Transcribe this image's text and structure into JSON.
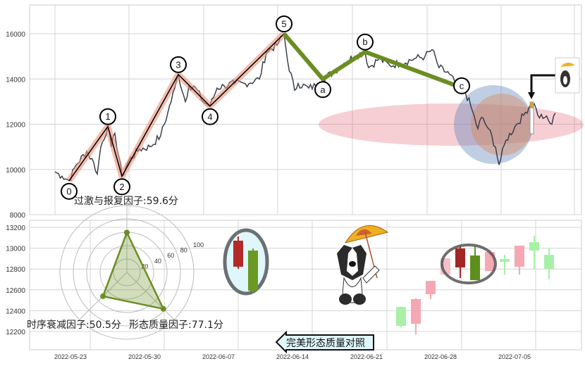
{
  "chart_data": [
    {
      "type": "line",
      "panel": "top",
      "yticks": [
        8000,
        10000,
        12000,
        14000,
        16000
      ],
      "ylim": [
        8000,
        17200
      ],
      "xlabel": "",
      "ylabel": "",
      "grid": true,
      "price_series": [
        [
          0,
          9900
        ],
        [
          2,
          9700
        ],
        [
          4,
          9500
        ],
        [
          6,
          10200
        ],
        [
          9,
          10800
        ],
        [
          11,
          10300
        ],
        [
          12,
          9800
        ],
        [
          13,
          11000
        ],
        [
          15,
          11900
        ],
        [
          16,
          11000
        ],
        [
          17,
          11600
        ],
        [
          19,
          9700
        ],
        [
          21,
          10400
        ],
        [
          24,
          10900
        ],
        [
          27,
          11000
        ],
        [
          30,
          11500
        ],
        [
          32,
          12500
        ],
        [
          34,
          13600
        ],
        [
          35,
          14200
        ],
        [
          37,
          13000
        ],
        [
          38,
          13700
        ],
        [
          40,
          13600
        ],
        [
          42,
          13000
        ],
        [
          44,
          12800
        ],
        [
          46,
          13600
        ],
        [
          48,
          13700
        ],
        [
          51,
          13800
        ],
        [
          54,
          13800
        ],
        [
          58,
          14000
        ],
        [
          60,
          15200
        ],
        [
          63,
          15500
        ],
        [
          65,
          16000
        ],
        [
          66,
          14800
        ],
        [
          68,
          13500
        ],
        [
          69,
          13800
        ],
        [
          72,
          13600
        ],
        [
          74,
          13700
        ],
        [
          76,
          14000
        ],
        [
          79,
          14300
        ],
        [
          82,
          14700
        ],
        [
          85,
          15000
        ],
        [
          88,
          15200
        ],
        [
          89,
          14500
        ],
        [
          92,
          14900
        ],
        [
          95,
          14600
        ],
        [
          98,
          14700
        ],
        [
          102,
          14900
        ],
        [
          105,
          15000
        ],
        [
          107,
          15300
        ],
        [
          109,
          14500
        ],
        [
          112,
          14200
        ],
        [
          114,
          13700
        ],
        [
          116,
          13600
        ],
        [
          118,
          12800
        ],
        [
          120,
          11800
        ],
        [
          121,
          12300
        ],
        [
          123,
          11800
        ],
        [
          125,
          11000
        ],
        [
          126,
          10200
        ],
        [
          128,
          11300
        ],
        [
          131,
          12000
        ],
        [
          133,
          12400
        ],
        [
          135,
          12900
        ],
        [
          136,
          12900
        ],
        [
          137,
          12400
        ],
        [
          139,
          12300
        ],
        [
          141,
          12000
        ],
        [
          142,
          12500
        ]
      ],
      "impulse_waves": [
        {
          "label": "0",
          "x": 4,
          "y": 9500,
          "place": "below"
        },
        {
          "label": "1",
          "x": 15,
          "y": 11900,
          "place": "above"
        },
        {
          "label": "2",
          "x": 19,
          "y": 9700,
          "place": "below"
        },
        {
          "label": "3",
          "x": 35,
          "y": 14200,
          "place": "above"
        },
        {
          "label": "4",
          "x": 44,
          "y": 12800,
          "place": "below"
        },
        {
          "label": "5",
          "x": 65,
          "y": 16000,
          "place": "above"
        }
      ],
      "corrective_waves": [
        {
          "label": "a",
          "x": 76,
          "y": 14000,
          "place": "below"
        },
        {
          "label": "b",
          "x": 88,
          "y": 15200,
          "place": "above"
        },
        {
          "label": "c",
          "x": 114,
          "y": 13700,
          "place": "right"
        }
      ],
      "colors": {
        "price": "#3a3f4a",
        "impulse": "#e8917a",
        "impulse_line": "#000000",
        "corrective": "#6b8e23",
        "zone": "#e06070",
        "circle_blue": "#5a7fb8",
        "circle_orange": "#d98a60"
      }
    },
    {
      "type": "candlestick",
      "panel": "bottom",
      "yticks": [
        12200,
        12400,
        12600,
        12800,
        13000,
        13200
      ],
      "ylim": [
        12030,
        13270
      ],
      "xticks": [
        "2022-05-23",
        "2022-05-30",
        "2022-06-07",
        "2022-06-14",
        "2022-06-21",
        "2022-06-28",
        "2022-07-05"
      ],
      "grid": true,
      "reference_candles": [
        {
          "i": 10,
          "open": 12822,
          "high": 13112,
          "low": 12801,
          "close": 13072,
          "color": "#b22a2a"
        },
        {
          "i": 11,
          "open": 12977,
          "high": 12997,
          "low": 12565,
          "close": 12592,
          "color": "#6b9a22"
        }
      ],
      "candles": [
        {
          "i": 21,
          "open": 12436,
          "high": 12440,
          "low": 12240,
          "close": 12254,
          "color": "#a8f0a8"
        },
        {
          "i": 22,
          "open": 12274,
          "high": 12520,
          "low": 12173,
          "close": 12511,
          "color": "#f5a8b4"
        },
        {
          "i": 23,
          "open": 12558,
          "high": 12686,
          "low": 12511,
          "close": 12686,
          "color": "#f5a8b4"
        },
        {
          "i": 24,
          "open": 12747,
          "high": 12903,
          "low": 12740,
          "close": 12903,
          "color": "#f5c0c8"
        },
        {
          "i": 25,
          "open": 12815,
          "high": 13018,
          "low": 12713,
          "close": 12997,
          "color": "#a32525"
        },
        {
          "i": 26,
          "open": 12930,
          "high": 13018,
          "low": 12693,
          "close": 12693,
          "color": "#5e8f1c"
        },
        {
          "i": 27,
          "open": 12781,
          "high": 12985,
          "low": 12781,
          "close": 12963,
          "color": "#f5a8b4"
        },
        {
          "i": 28,
          "open": 12896,
          "high": 12936,
          "low": 12747,
          "close": 12869,
          "color": "#a8f0a8"
        },
        {
          "i": 29,
          "open": 12822,
          "high": 13024,
          "low": 12747,
          "close": 13024,
          "color": "#f5a8b4"
        },
        {
          "i": 30,
          "open": 13058,
          "high": 13119,
          "low": 12801,
          "close": 12977,
          "color": "#a8f0a8"
        },
        {
          "i": 31,
          "open": 12936,
          "high": 13004,
          "low": 12700,
          "close": 12801,
          "color": "#a8f0a8"
        }
      ]
    },
    {
      "type": "radar",
      "rings": [
        "20",
        "40",
        "60",
        "80",
        "100"
      ],
      "axes": [
        {
          "name": "过激与报复因子",
          "value": 59.6
        },
        {
          "name": "时序衰减因子",
          "value": 50.5
        },
        {
          "name": "形态质量因子",
          "value": 77.1
        }
      ],
      "color": "#6b8e23"
    }
  ],
  "factors": {
    "excess_revenge": "过激与报复因子:59.6分",
    "time_decay": "时序衰减因子:50.5分",
    "form_quality": "形态质量因子:77.1分"
  },
  "compare_button": "完美形态质量对照",
  "icons": {
    "mascot": "dog-with-umbrella-icon",
    "arrow": "arrow-left-icon"
  }
}
